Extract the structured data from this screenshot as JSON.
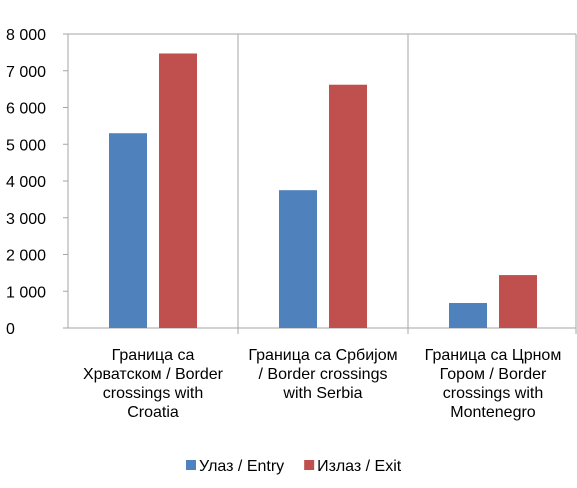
{
  "chart_data": {
    "type": "bar",
    "categories": [
      [
        "Граница са",
        "Хрватском / Border",
        "crossings with",
        "Croatia"
      ],
      [
        "Граница са Србијом",
        "/ Border crossings",
        "with Serbia"
      ],
      [
        "Граница са Црном",
        "Гором / Border",
        "crossings with",
        "Montenegro"
      ]
    ],
    "series": [
      {
        "name": "Улаз / Entry",
        "color": "#4F81BD",
        "values": [
          5300,
          3750,
          680
        ]
      },
      {
        "name": "Излаз / Exit",
        "color": "#C0504D",
        "values": [
          7470,
          6620,
          1440
        ]
      }
    ],
    "y_ticks": [
      "0",
      "1 000",
      "2 000",
      "3 000",
      "4 000",
      "5 000",
      "6 000",
      "7 000",
      "8 000"
    ],
    "ylim": [
      0,
      8000
    ],
    "grid": "vertical separators between categories",
    "legend_position": "bottom"
  }
}
